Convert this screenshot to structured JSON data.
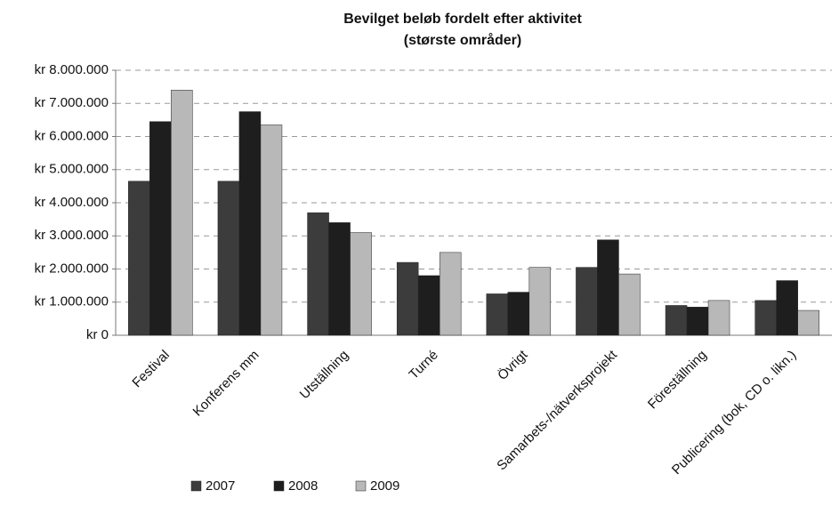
{
  "chart_data": {
    "type": "bar",
    "title": "Bevilget beløb fordelt efter aktivitet",
    "subtitle": "(største områder)",
    "categories": [
      "Festival",
      "Konferens mm",
      "Utställning",
      "Turné",
      "Övrigt",
      "Samarbets-/nätverksprojekt",
      "Föreställning",
      "Publicering (bok, CD o. likn.)"
    ],
    "series": [
      {
        "name": "2007",
        "color": "#3c3c3c",
        "values": [
          4650000,
          4650000,
          3700000,
          2200000,
          1250000,
          2050000,
          900000,
          1050000
        ]
      },
      {
        "name": "2008",
        "color": "#1e1e1e",
        "values": [
          6450000,
          6750000,
          3400000,
          1800000,
          1300000,
          2880000,
          850000,
          1650000
        ]
      },
      {
        "name": "2009",
        "color": "#b8b8b8",
        "values": [
          7400000,
          6350000,
          3100000,
          2500000,
          2050000,
          1850000,
          1050000,
          750000
        ]
      }
    ],
    "ylim": [
      0,
      8000000
    ],
    "yticks": [
      {
        "value": 0,
        "label": "kr 0"
      },
      {
        "value": 1000000,
        "label": "kr 1.000.000"
      },
      {
        "value": 2000000,
        "label": "kr 2.000.000"
      },
      {
        "value": 3000000,
        "label": "kr 3.000.000"
      },
      {
        "value": 4000000,
        "label": "kr 4.000.000"
      },
      {
        "value": 5000000,
        "label": "kr 5.000.000"
      },
      {
        "value": 6000000,
        "label": "kr 6.000.000"
      },
      {
        "value": 7000000,
        "label": "kr 7.000.000"
      },
      {
        "value": 8000000,
        "label": "kr 8.000.000"
      }
    ],
    "grid": true,
    "legend": "bottom"
  }
}
